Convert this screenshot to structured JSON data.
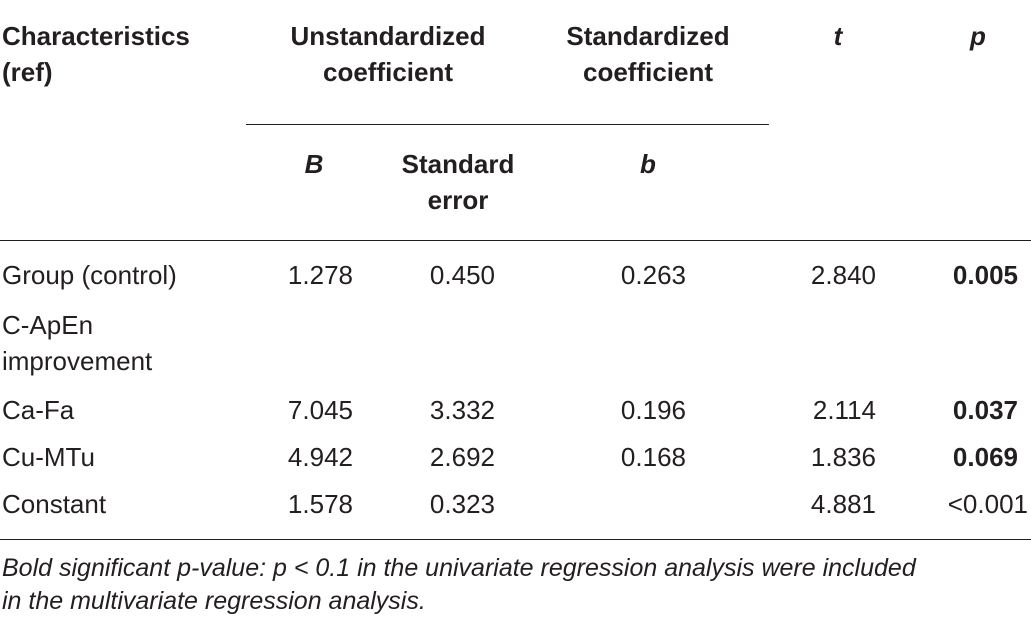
{
  "table": {
    "headers": {
      "characteristics": [
        "Characteristics",
        "(ref)"
      ],
      "unstandardized": [
        "Unstandardized",
        "coefficient"
      ],
      "standardized": [
        "Standardized",
        "coefficient"
      ],
      "t": "t",
      "p": "p",
      "B": "B",
      "standard_error": [
        "Standard",
        "error"
      ],
      "b": "b"
    },
    "rows": [
      {
        "label": [
          "Group (control)"
        ],
        "B": "1.278",
        "se": "0.450",
        "beta": "0.263",
        "t": "2.840",
        "p": "0.005",
        "p_bold": true
      },
      {
        "label": [
          "C-ApEn",
          "improvement"
        ],
        "B": "",
        "se": "",
        "beta": "",
        "t": "",
        "p": "",
        "p_bold": false
      },
      {
        "label": [
          "Ca-Fa"
        ],
        "B": "7.045",
        "se": "3.332",
        "beta": "0.196",
        "t": "2.114",
        "p": "0.037",
        "p_bold": true
      },
      {
        "label": [
          "Cu-MTu"
        ],
        "B": "4.942",
        "se": "2.692",
        "beta": "0.168",
        "t": "1.836",
        "p": "0.069",
        "p_bold": true
      },
      {
        "label": [
          "Constant"
        ],
        "B": "1.578",
        "se": "0.323",
        "beta": "",
        "t": "4.881",
        "p": "<0.001",
        "p_bold": false
      }
    ]
  },
  "footnote": [
    "Bold significant p-value: p < 0.1 in the univariate regression analysis were included",
    "in the multivariate regression analysis."
  ]
}
